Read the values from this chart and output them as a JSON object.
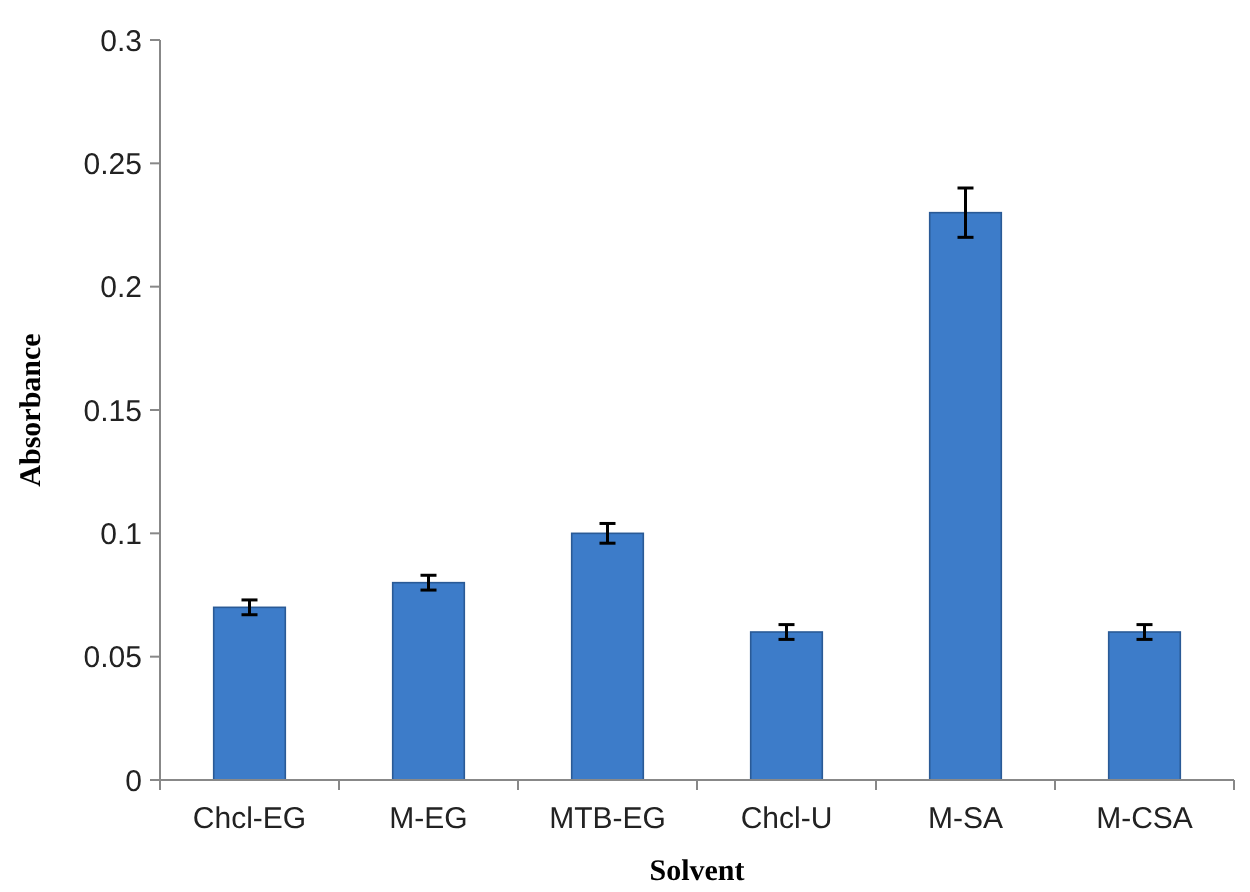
{
  "chart_data": {
    "type": "bar",
    "xlabel": "Solvent",
    "ylabel": "Absorbance",
    "categories": [
      "Chcl-EG",
      "M-EG",
      "MTB-EG",
      "Chcl-U",
      "M-SA",
      "M-CSA"
    ],
    "values": [
      0.07,
      0.08,
      0.1,
      0.06,
      0.23,
      0.06
    ],
    "errors": [
      0.003,
      0.003,
      0.004,
      0.003,
      0.01,
      0.003
    ],
    "color": "#3d7cc9",
    "ylim": [
      0,
      0.3
    ],
    "yticks": [
      0,
      0.05,
      0.1,
      0.15,
      0.2,
      0.25,
      0.3
    ],
    "grid": false
  }
}
